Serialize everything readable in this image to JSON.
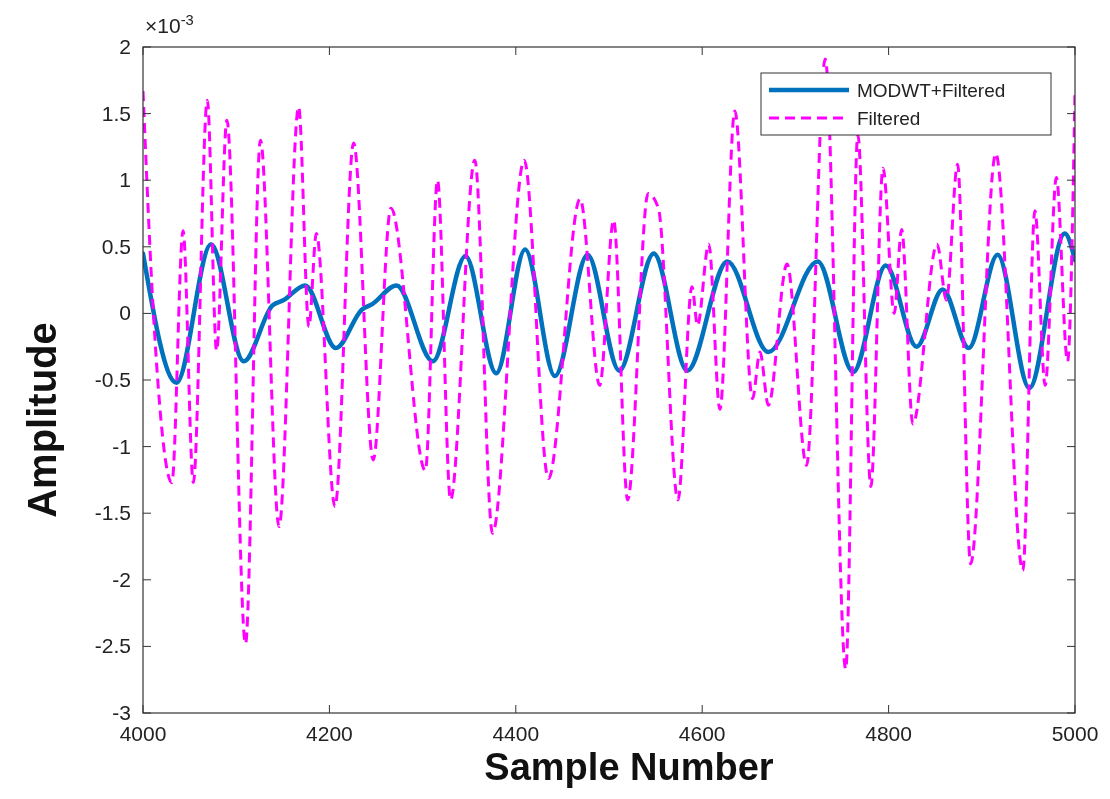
{
  "chart_data": {
    "type": "line",
    "xlabel": "Sample Number",
    "ylabel": "Amplitude",
    "annotations": [
      "×10$^{-3}$"
    ],
    "xlim": [
      4000,
      5000
    ],
    "xticks": [
      4000,
      4200,
      4400,
      4600,
      4800,
      5000
    ],
    "ylim": [
      -3,
      2
    ],
    "yticks": [
      -3,
      -2.5,
      -2,
      -1.5,
      -1,
      -0.5,
      0,
      0.5,
      1,
      1.5,
      2
    ],
    "grid": false,
    "legend": "top right",
    "series": [
      {
        "name": "MODWT+Filtered",
        "color": "#0072bd",
        "line_style": "solid",
        "x": [
          4000,
          4036,
          4073,
          4108,
          4139,
          4151,
          4174,
          4207,
          4235,
          4246,
          4272,
          4311,
          4346,
          4379,
          4410,
          4442,
          4477,
          4511,
          4548,
          4584,
          4627,
          4671,
          4724,
          4762,
          4797,
          4830,
          4858,
          4886,
          4917,
          4951,
          4989,
          5000
        ],
        "values": [
          0.45,
          -0.52,
          0.52,
          -0.36,
          0.06,
          0.1,
          0.21,
          -0.26,
          0.03,
          0.07,
          0.21,
          -0.36,
          0.43,
          -0.45,
          0.48,
          -0.47,
          0.44,
          -0.43,
          0.45,
          -0.43,
          0.39,
          -0.29,
          0.39,
          -0.44,
          0.36,
          -0.25,
          0.18,
          -0.26,
          0.44,
          -0.56,
          0.6,
          0.4
        ]
      },
      {
        "name": "Filtered",
        "color": "#ff00ff",
        "line_style": "dashed",
        "x": [
          4000,
          4012,
          4031,
          4043,
          4054,
          4069,
          4079,
          4090,
          4110,
          4126,
          4146,
          4167,
          4178,
          4186,
          4206,
          4226,
          4247,
          4266,
          4303,
          4316,
          4330,
          4356,
          4375,
          4409,
          4435,
          4469,
          4490,
          4505,
          4520,
          4542,
          4553,
          4574,
          4589,
          4595,
          4607,
          4619,
          4635,
          4654,
          4662,
          4671,
          4691,
          4712,
          4732,
          4754,
          4767,
          4781,
          4794,
          4806,
          4814,
          4826,
          4852,
          4862,
          4874,
          4888,
          4915,
          4944,
          4957,
          4968,
          4980,
          4992,
          5000
        ],
        "values": [
          1.67,
          -0.1,
          -1.27,
          0.62,
          -1.27,
          1.6,
          -0.28,
          1.45,
          -2.48,
          1.3,
          -1.6,
          1.55,
          -0.1,
          0.6,
          -1.45,
          1.28,
          -1.1,
          0.79,
          -1.18,
          1.0,
          -1.4,
          1.15,
          -1.65,
          1.15,
          -1.24,
          0.86,
          -0.54,
          0.7,
          -1.4,
          0.9,
          0.79,
          -1.4,
          0.2,
          -0.09,
          0.52,
          -0.72,
          1.52,
          -0.64,
          -0.29,
          -0.69,
          0.37,
          -1.14,
          1.91,
          -2.67,
          1.34,
          -1.3,
          1.09,
          0.0,
          0.63,
          -0.83,
          0.52,
          0.1,
          1.12,
          -1.88,
          1.2,
          -1.93,
          0.77,
          -0.54,
          1.02,
          -0.36,
          1.66
        ]
      }
    ]
  }
}
